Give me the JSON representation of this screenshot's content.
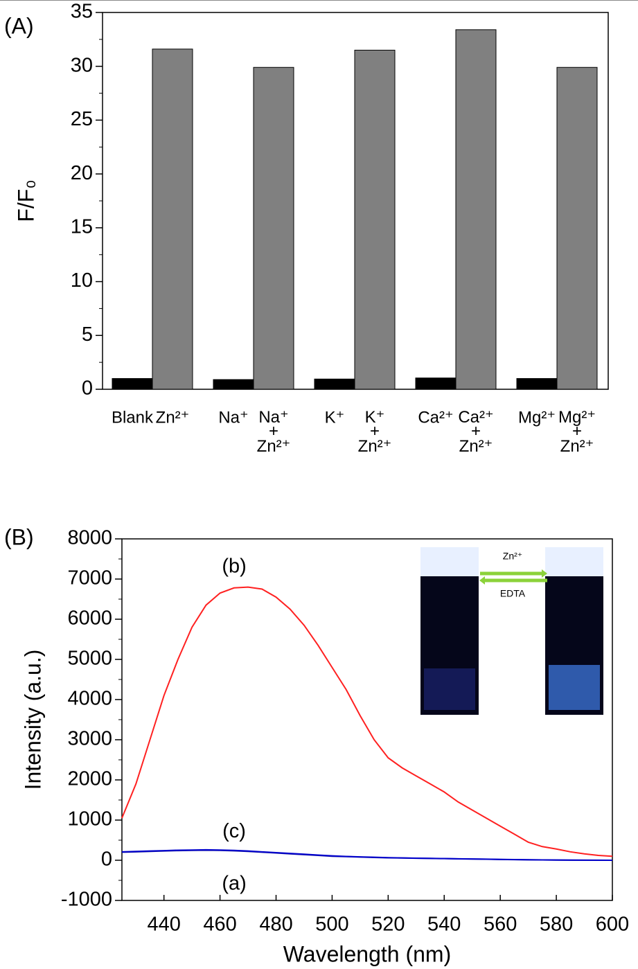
{
  "chart_data": [
    {
      "type": "bar",
      "panel": "(A)",
      "y_label": "F/F₀",
      "categories": [
        "Blank",
        "Zn²⁺",
        "Na⁺",
        "Na⁺\n+\nZn²⁺",
        "K⁺",
        "K⁺\n+\nZn²⁺",
        "Ca²⁺",
        "Ca²⁺\n+\nZn²⁺",
        "Mg²⁺",
        "Mg²⁺\n+\nZn²⁺"
      ],
      "values": [
        1.0,
        31.6,
        0.9,
        29.9,
        0.95,
        31.5,
        1.05,
        33.4,
        1.0,
        29.9
      ],
      "colors": [
        "#000000",
        "#808080",
        "#000000",
        "#808080",
        "#000000",
        "#808080",
        "#000000",
        "#808080",
        "#000000",
        "#808080"
      ],
      "ylim": [
        0,
        35
      ],
      "yticks": [
        0,
        5,
        10,
        15,
        20,
        25,
        30,
        35
      ]
    },
    {
      "type": "line",
      "panel": "(B)",
      "x_label": "Wavelength (nm)",
      "y_label": "Intensity (a.u.)",
      "x": [
        425,
        430,
        435,
        440,
        445,
        450,
        455,
        460,
        465,
        470,
        475,
        480,
        485,
        490,
        495,
        500,
        505,
        510,
        515,
        520,
        525,
        530,
        535,
        540,
        545,
        550,
        555,
        560,
        565,
        570,
        575,
        580,
        585,
        590,
        595,
        600
      ],
      "series": [
        {
          "name": "(a)",
          "color": "#1a1aa0",
          "values": [
            200,
            210,
            220,
            230,
            240,
            245,
            250,
            245,
            235,
            220,
            200,
            180,
            160,
            140,
            120,
            100,
            90,
            80,
            70,
            60,
            55,
            50,
            45,
            40,
            35,
            30,
            25,
            20,
            15,
            10,
            8,
            5,
            3,
            2,
            1,
            0
          ]
        },
        {
          "name": "(b)",
          "color": "#ff2020",
          "values": [
            1050,
            1900,
            3000,
            4100,
            5000,
            5800,
            6350,
            6650,
            6780,
            6800,
            6750,
            6550,
            6250,
            5850,
            5350,
            4800,
            4250,
            3600,
            3000,
            2550,
            2300,
            2100,
            1900,
            1700,
            1450,
            1250,
            1050,
            850,
            650,
            450,
            340,
            280,
            210,
            160,
            120,
            100
          ]
        },
        {
          "name": "(c)",
          "color": "#0000cc",
          "values": [
            210,
            220,
            230,
            240,
            250,
            255,
            260,
            255,
            245,
            230,
            210,
            190,
            170,
            150,
            130,
            110,
            95,
            85,
            75,
            65,
            58,
            52,
            47,
            42,
            37,
            32,
            27,
            22,
            17,
            12,
            9,
            6,
            4,
            3,
            2,
            1
          ]
        }
      ],
      "xlim": [
        425,
        600
      ],
      "xticks": [
        440,
        460,
        480,
        500,
        520,
        540,
        560,
        580,
        600
      ],
      "ylim": [
        -1000,
        8000
      ],
      "yticks": [
        -1000,
        0,
        1000,
        2000,
        3000,
        4000,
        5000,
        6000,
        7000,
        8000
      ],
      "inset_labels": [
        "Zn²⁺",
        "EDTA"
      ]
    }
  ]
}
